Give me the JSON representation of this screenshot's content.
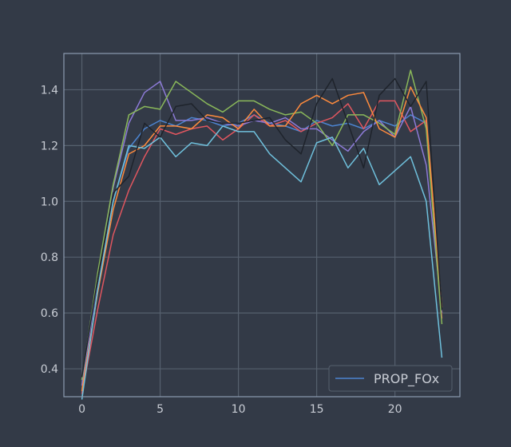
{
  "chart_data": {
    "type": "line",
    "title": "",
    "xlabel": "",
    "ylabel": "",
    "xlim": [
      -1.15,
      24.15
    ],
    "ylim": [
      0.3,
      1.53
    ],
    "x_ticks": [
      0,
      5,
      10,
      15,
      20
    ],
    "y_ticks": [
      0.4,
      0.6,
      0.8,
      1.0,
      1.2,
      1.4
    ],
    "grid": true,
    "legend_position": "lower-right",
    "legend": [
      {
        "label": "PROP_FOx",
        "color": "#4c84d0"
      }
    ],
    "x": [
      0,
      1,
      2,
      3,
      4,
      5,
      6,
      7,
      8,
      9,
      10,
      11,
      12,
      13,
      14,
      15,
      16,
      17,
      18,
      19,
      20,
      21,
      22,
      23
    ],
    "series": [
      {
        "color": "#4c84d0",
        "values": [
          0.31,
          0.68,
          1.0,
          1.19,
          1.26,
          1.29,
          1.27,
          1.3,
          1.29,
          1.27,
          1.28,
          1.31,
          1.28,
          1.27,
          1.25,
          1.29,
          1.27,
          1.28,
          1.26,
          1.29,
          1.27,
          1.31,
          1.28,
          0.6
        ]
      },
      {
        "color": "#e0565f",
        "values": [
          0.31,
          0.61,
          0.88,
          1.04,
          1.16,
          1.26,
          1.24,
          1.26,
          1.27,
          1.22,
          1.26,
          1.31,
          1.27,
          1.29,
          1.25,
          1.28,
          1.3,
          1.35,
          1.26,
          1.36,
          1.36,
          1.25,
          1.29,
          0.58
        ]
      },
      {
        "color": "#8c7ad6",
        "values": [
          0.34,
          0.72,
          1.05,
          1.28,
          1.39,
          1.43,
          1.29,
          1.29,
          1.3,
          1.28,
          1.27,
          1.29,
          1.28,
          1.3,
          1.26,
          1.26,
          1.22,
          1.18,
          1.25,
          1.29,
          1.23,
          1.34,
          1.13,
          0.61
        ]
      },
      {
        "color": "#8ab85a",
        "values": [
          0.36,
          0.74,
          1.06,
          1.31,
          1.34,
          1.33,
          1.43,
          1.39,
          1.35,
          1.32,
          1.36,
          1.36,
          1.33,
          1.31,
          1.32,
          1.28,
          1.2,
          1.31,
          1.31,
          1.28,
          1.24,
          1.47,
          1.26,
          0.56
        ]
      },
      {
        "color": "#ff8b3d",
        "values": [
          0.32,
          0.67,
          0.97,
          1.17,
          1.2,
          1.27,
          1.27,
          1.26,
          1.31,
          1.3,
          1.26,
          1.33,
          1.27,
          1.27,
          1.35,
          1.38,
          1.35,
          1.38,
          1.39,
          1.26,
          1.23,
          1.41,
          1.3,
          0.62
        ]
      },
      {
        "color": "#6fc0dc",
        "values": [
          0.29,
          0.68,
          1.0,
          1.2,
          1.19,
          1.23,
          1.16,
          1.21,
          1.2,
          1.27,
          1.25,
          1.25,
          1.17,
          1.12,
          1.07,
          1.21,
          1.23,
          1.12,
          1.19,
          1.06,
          1.11,
          1.16,
          1.0,
          0.44
        ]
      },
      {
        "color": "#1e232b",
        "values": [
          0.37,
          0.72,
          1.03,
          1.09,
          1.28,
          1.23,
          1.34,
          1.35,
          1.29,
          1.28,
          1.28,
          1.29,
          1.3,
          1.22,
          1.17,
          1.35,
          1.44,
          1.28,
          1.12,
          1.38,
          1.44,
          1.34,
          1.43,
          0.61
        ]
      }
    ]
  }
}
